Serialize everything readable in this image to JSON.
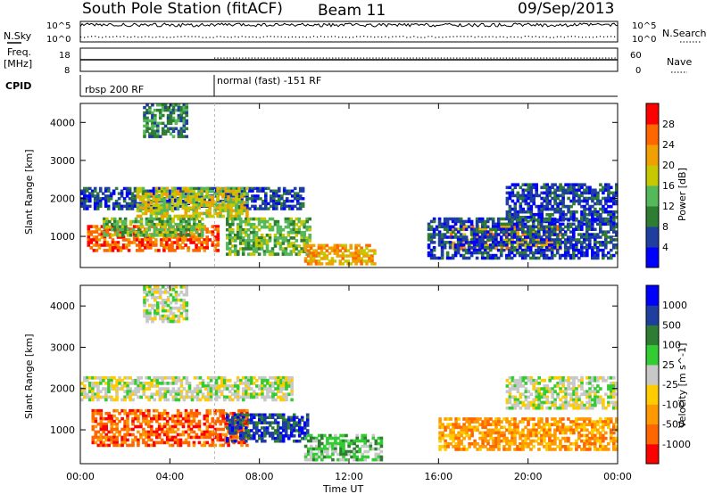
{
  "header": {
    "station_title": "South Pole Station (fitACF)",
    "beam": "Beam 11",
    "date": "09/Sep/2013"
  },
  "panels": {
    "nsky_label": "N.Sky",
    "nsearch_label": "N.Search",
    "nsky_ticks": [
      "10^5",
      "10^0"
    ],
    "nsearch_ticks": [
      "10^5",
      "10^0"
    ],
    "freq_label_1": "Freq.",
    "freq_label_2": "[MHz]",
    "freq_ticks": [
      "18",
      "8"
    ],
    "nave_label": "Nave",
    "nave_ticks": [
      "60",
      "0"
    ],
    "cpid_label": "CPID",
    "cpid_segments": [
      "rbsp 200 RF",
      "normal (fast) -151 RF"
    ]
  },
  "chart_data": [
    {
      "type": "heatmap",
      "title": "",
      "ylabel": "Slant Range [km]",
      "xlabel": "",
      "x_ticks": [
        "00:00",
        "04:00",
        "08:00",
        "12:00",
        "16:00",
        "20:00",
        "00:00"
      ],
      "y_ticks": [
        "4000",
        "3000",
        "2000",
        "1000"
      ],
      "ylim": [
        180,
        4500
      ],
      "colorbar_label": "Power [dB]",
      "colorbar_ticks": [
        "28",
        "24",
        "20",
        "16",
        "12",
        "8",
        "4"
      ],
      "colors": [
        "#0000ff",
        "#1e3fa0",
        "#2e7d32",
        "#55b85a",
        "#c8c800",
        "#f0a000",
        "#ff6600",
        "#ff0000"
      ],
      "bands": [
        {
          "t0": 0.3,
          "t1": 6.2,
          "r0": 600,
          "r1": 1300,
          "level": 6
        },
        {
          "t0": 1.0,
          "t1": 5.5,
          "r0": 1000,
          "r1": 1500,
          "level": 3
        },
        {
          "t0": 0.0,
          "t1": 10.0,
          "r0": 1700,
          "r1": 2300,
          "level": 1
        },
        {
          "t0": 2.5,
          "t1": 7.5,
          "r0": 1500,
          "r1": 2300,
          "level": 4
        },
        {
          "t0": 6.5,
          "t1": 10.3,
          "r0": 500,
          "r1": 1500,
          "level": 3
        },
        {
          "t0": 10.0,
          "t1": 13.2,
          "r0": 250,
          "r1": 800,
          "level": 5
        },
        {
          "t0": 16.5,
          "t1": 21.5,
          "r0": 650,
          "r1": 1300,
          "level": 5
        },
        {
          "t0": 15.5,
          "t1": 24.0,
          "r0": 400,
          "r1": 1500,
          "level": 1
        },
        {
          "t0": 19.0,
          "t1": 24.0,
          "r0": 1400,
          "r1": 2400,
          "level": 1
        },
        {
          "t0": 2.8,
          "t1": 4.8,
          "r0": 3600,
          "r1": 4500,
          "level": 2
        }
      ]
    },
    {
      "type": "heatmap",
      "title": "",
      "ylabel": "Slant Range [km]",
      "xlabel": "Time UT",
      "x_ticks": [
        "00:00",
        "04:00",
        "08:00",
        "12:00",
        "16:00",
        "20:00",
        "00:00"
      ],
      "y_ticks": [
        "4000",
        "3000",
        "2000",
        "1000"
      ],
      "ylim": [
        180,
        4500
      ],
      "colorbar_label": "Velocity [m s^-1]",
      "colorbar_ticks": [
        "1000",
        "500",
        "100",
        "25",
        "-25",
        "-100",
        "-500",
        "-1000"
      ],
      "colors": [
        "#ff0000",
        "#ff6600",
        "#ff9900",
        "#ffcc00",
        "#c8c8c8",
        "#33cc33",
        "#2e7d32",
        "#1e3fa0",
        "#0000ff"
      ],
      "bands": [
        {
          "t0": 0.5,
          "t1": 7.5,
          "r0": 600,
          "r1": 1500,
          "level": 1
        },
        {
          "t0": 0.0,
          "t1": 9.5,
          "r0": 1700,
          "r1": 2300,
          "level": 4
        },
        {
          "t0": 6.5,
          "t1": 10.2,
          "r0": 700,
          "r1": 1400,
          "level": 7
        },
        {
          "t0": 10.0,
          "t1": 13.5,
          "r0": 250,
          "r1": 900,
          "level": 5
        },
        {
          "t0": 16.0,
          "t1": 24.0,
          "r0": 500,
          "r1": 1300,
          "level": 2
        },
        {
          "t0": 19.0,
          "t1": 24.0,
          "r0": 1500,
          "r1": 2300,
          "level": 4
        },
        {
          "t0": 2.8,
          "t1": 4.8,
          "r0": 3600,
          "r1": 4500,
          "level": 4
        }
      ]
    }
  ]
}
